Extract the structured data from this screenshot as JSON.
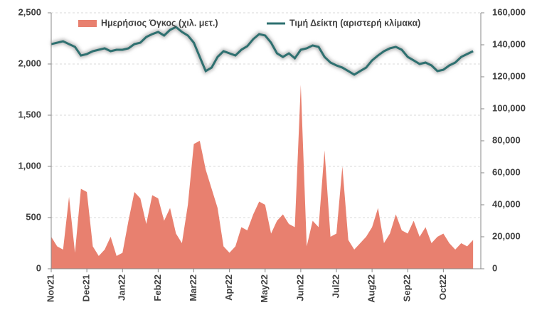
{
  "chart_data": {
    "type": "area-line",
    "categories": [
      "Nov21",
      null,
      null,
      null,
      null,
      null,
      "Dec21",
      null,
      null,
      null,
      null,
      null,
      "Jan22",
      null,
      null,
      null,
      null,
      null,
      "Feb22",
      null,
      null,
      null,
      null,
      null,
      "Mar22",
      null,
      null,
      null,
      null,
      null,
      "Apr22",
      null,
      null,
      null,
      null,
      null,
      "May22",
      null,
      null,
      null,
      null,
      null,
      "Jun22",
      null,
      null,
      null,
      null,
      null,
      "Jul22",
      null,
      null,
      null,
      null,
      null,
      "Aug22",
      null,
      null,
      null,
      null,
      null,
      "Sep22",
      null,
      null,
      null,
      null,
      null,
      "Oct22",
      null,
      null,
      null,
      null,
      null
    ],
    "series": [
      {
        "name": "Ημερήσιος Όγκος (χιλ. μετ.)",
        "color": "#e8806f",
        "axis": "y2",
        "values": [
          20000,
          14000,
          12000,
          45000,
          10000,
          50000,
          48000,
          14000,
          8000,
          12000,
          20000,
          8000,
          10000,
          30000,
          48000,
          44000,
          28000,
          46000,
          44000,
          30000,
          38000,
          22000,
          16000,
          40000,
          78000,
          80000,
          62000,
          50000,
          38000,
          14000,
          10000,
          14000,
          26000,
          24000,
          34000,
          42000,
          40000,
          22000,
          30000,
          34000,
          28000,
          26000,
          115000,
          14000,
          30000,
          26000,
          74000,
          20000,
          22000,
          64000,
          18000,
          12000,
          16000,
          20000,
          26000,
          38000,
          16000,
          22000,
          34000,
          24000,
          22000,
          30000,
          20000,
          26000,
          16000,
          20000,
          22000,
          16000,
          12000,
          16000,
          14000,
          18000
        ]
      },
      {
        "name": "Τιμή Δείκτη (αριστερή κλίμακα)",
        "color": "#2e7070",
        "values": [
          2194,
          2208,
          2222,
          2194,
          2167,
          2083,
          2097,
          2125,
          2139,
          2153,
          2125,
          2139,
          2139,
          2153,
          2194,
          2208,
          2264,
          2292,
          2313,
          2278,
          2333,
          2361,
          2313,
          2278,
          2208,
          2069,
          1931,
          1965,
          2069,
          2125,
          2104,
          2083,
          2139,
          2174,
          2243,
          2292,
          2278,
          2208,
          2104,
          2069,
          2104,
          2056,
          2139,
          2153,
          2181,
          2167,
          2069,
          2014,
          1986,
          1965,
          1931,
          1896,
          1931,
          1965,
          2035,
          2083,
          2125,
          2153,
          2167,
          2139,
          2069,
          2035,
          2000,
          2014,
          1986,
          1931,
          1944,
          1986,
          2014,
          2069,
          2097,
          2125
        ]
      }
    ],
    "ylim": [
      0,
      2500
    ],
    "yticks": [
      0,
      {
        "value": 500,
        "label": "500"
      },
      {
        "value": 1000,
        "label": "1,000"
      },
      {
        "value": 1500,
        "label": "1,500"
      },
      {
        "value": 2000,
        "label": "2,000"
      },
      {
        "value": 2500,
        "label": "2,500"
      }
    ],
    "y2lim": [
      0,
      160000
    ],
    "y2ticks": [
      0,
      {
        "value": 20000,
        "label": "20,000"
      },
      {
        "value": 40000,
        "label": "40,000"
      },
      {
        "value": 60000,
        "label": "60,000"
      },
      {
        "value": 80000,
        "label": "80,000"
      },
      {
        "value": 100000,
        "label": "100,000"
      },
      {
        "value": 120000,
        "label": "120,000"
      },
      {
        "value": 140000,
        "label": "140,000"
      },
      {
        "value": 160000,
        "label": "160,000"
      }
    ],
    "grid": true,
    "legend": "top"
  }
}
